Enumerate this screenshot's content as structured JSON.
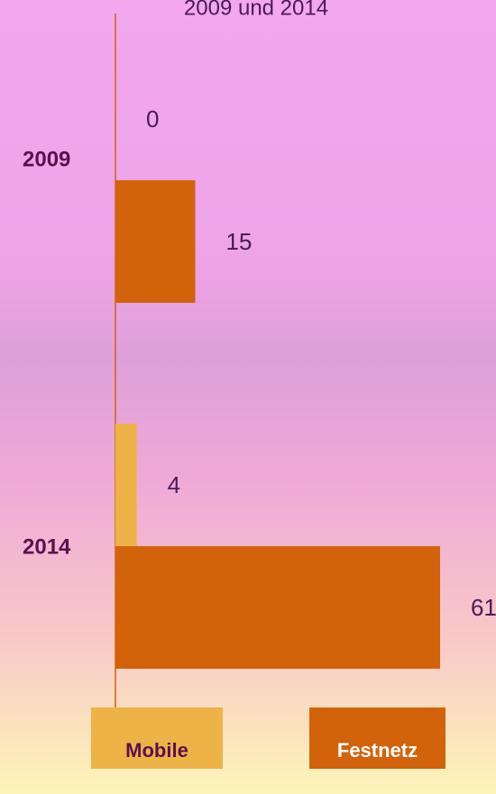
{
  "chart_data": {
    "type": "barh",
    "title": "2009 und 2014",
    "categories": [
      "2009",
      "2014"
    ],
    "series": [
      {
        "name": "Mobile",
        "color": "#EDB347",
        "values": [
          0,
          4
        ]
      },
      {
        "name": "Festnetz",
        "color": "#D2630A",
        "values": [
          15,
          61
        ]
      }
    ],
    "xlim": [
      0,
      61
    ]
  }
}
